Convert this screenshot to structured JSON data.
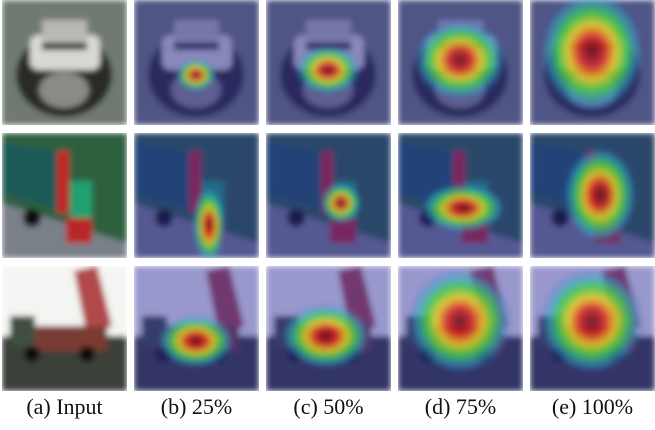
{
  "captions": [
    "(a) Input",
    "(b) 25%",
    "(c) 50%",
    "(d) 75%",
    "(e) 100%"
  ]
}
